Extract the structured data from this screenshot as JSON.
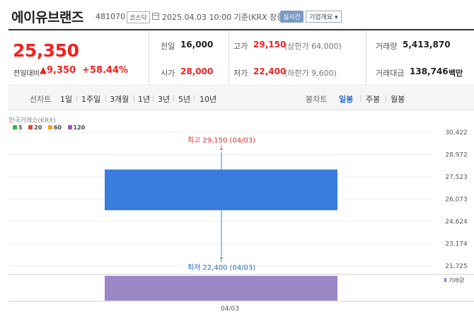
{
  "header": {
    "name": "에이유브랜즈",
    "code": "481070",
    "market": "코스닥",
    "as_of": "2025.04.03 10:00 기준(KRX 장중)",
    "realtime_label": "실시간",
    "company_info_label": "기업개요"
  },
  "quote": {
    "price": "25,350",
    "change_label": "전일대비",
    "change_value": "9,350",
    "change_pct": "+58.44%",
    "prev_close_label": "전일",
    "prev_close": "16,000",
    "open_label": "시가",
    "open": "28,000",
    "high_label": "고가",
    "high": "29,150",
    "upper_limit": "(상한가 64,000)",
    "low_label": "저가",
    "low": "22,400",
    "lower_limit": "(하한가 9,600)",
    "volume_label": "거래량",
    "volume": "5,413,870",
    "amount_label": "거래대금",
    "amount": "138,746",
    "amount_unit": "백만"
  },
  "periods": {
    "chart_label": "선차트",
    "items": [
      "1일",
      "1주일",
      "3개월",
      "1년",
      "3년",
      "5년",
      "10년"
    ],
    "candle_label": "봉차트",
    "candle_items": [
      "일봉",
      "주봉",
      "월봉"
    ],
    "candle_selected": 0
  },
  "source_label": "한국거래소(KRX)",
  "legend": [
    {
      "label": "5",
      "color": "#3bb34a"
    },
    {
      "label": "20",
      "color": "#e0413a"
    },
    {
      "label": "60",
      "color": "#f0a21a"
    },
    {
      "label": "120",
      "color": "#9a55c8"
    }
  ],
  "volume_label": "거래량",
  "chart_data": {
    "type": "candlestick",
    "x": [
      "04/03"
    ],
    "open": [
      28000
    ],
    "high": [
      29150
    ],
    "low": [
      22400
    ],
    "close": [
      25350
    ],
    "candle_color": "#3a7be0",
    "y_ticks": [
      "30,422",
      "28,972",
      "27,523",
      "26,073",
      "24,624",
      "23,174",
      "21,725"
    ],
    "ylim": [
      21725,
      30422
    ],
    "high_annotation": "최고 29,150 (04/03)",
    "low_annotation": "최저 22,400 (04/03)",
    "volume": [
      5413870
    ],
    "volume_color": "#9b86c6"
  }
}
